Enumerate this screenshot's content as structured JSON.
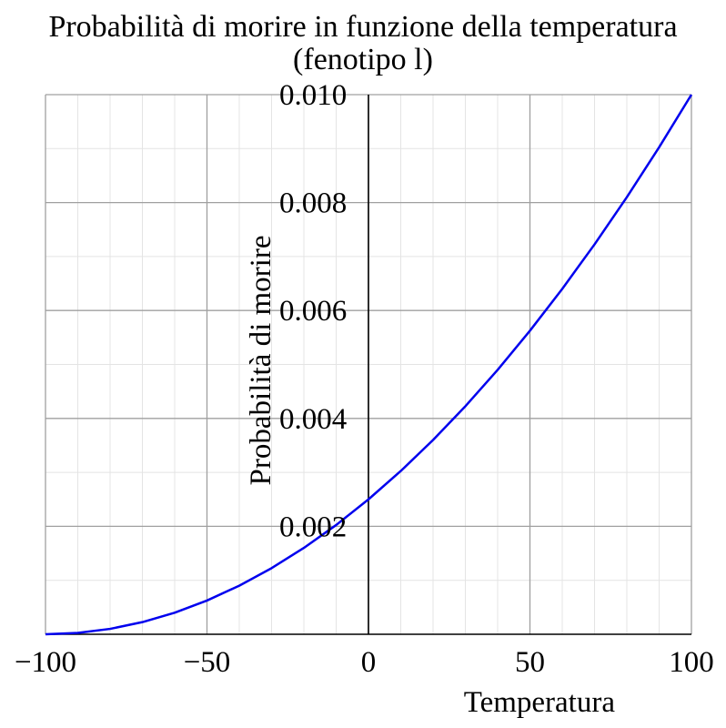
{
  "chart_data": {
    "type": "line",
    "title": "Probabilità di morire in funzione della temperatura",
    "subtitle": "(fenotipo l)",
    "xlabel": "Temperatura",
    "ylabel": "Probabilità di morire",
    "xlim": [
      -100,
      100
    ],
    "ylim": [
      0,
      0.01
    ],
    "x_ticks": [
      -100,
      -50,
      0,
      50,
      100
    ],
    "x_tick_labels": [
      "−100",
      "−50",
      "0",
      "50",
      "100"
    ],
    "y_ticks": [
      0.002,
      0.004,
      0.006,
      0.008,
      0.01
    ],
    "y_tick_labels": [
      "0.002",
      "0.004",
      "0.006",
      "0.008",
      "0.010"
    ],
    "grid": true,
    "series": [
      {
        "color": "#0000ee",
        "x": [
          -100,
          -90,
          -80,
          -70,
          -60,
          -50,
          -40,
          -30,
          -20,
          -10,
          0,
          10,
          20,
          30,
          40,
          50,
          60,
          70,
          80,
          90,
          100
        ],
        "y": [
          0,
          2.5e-05,
          0.0001,
          0.000225,
          0.0004,
          0.000625,
          0.0009,
          0.001225,
          0.0016,
          0.002025,
          0.0025,
          0.003025,
          0.0036,
          0.004225,
          0.0049,
          0.005625,
          0.0064,
          0.007225,
          0.0081,
          0.009025,
          0.01
        ]
      }
    ]
  }
}
